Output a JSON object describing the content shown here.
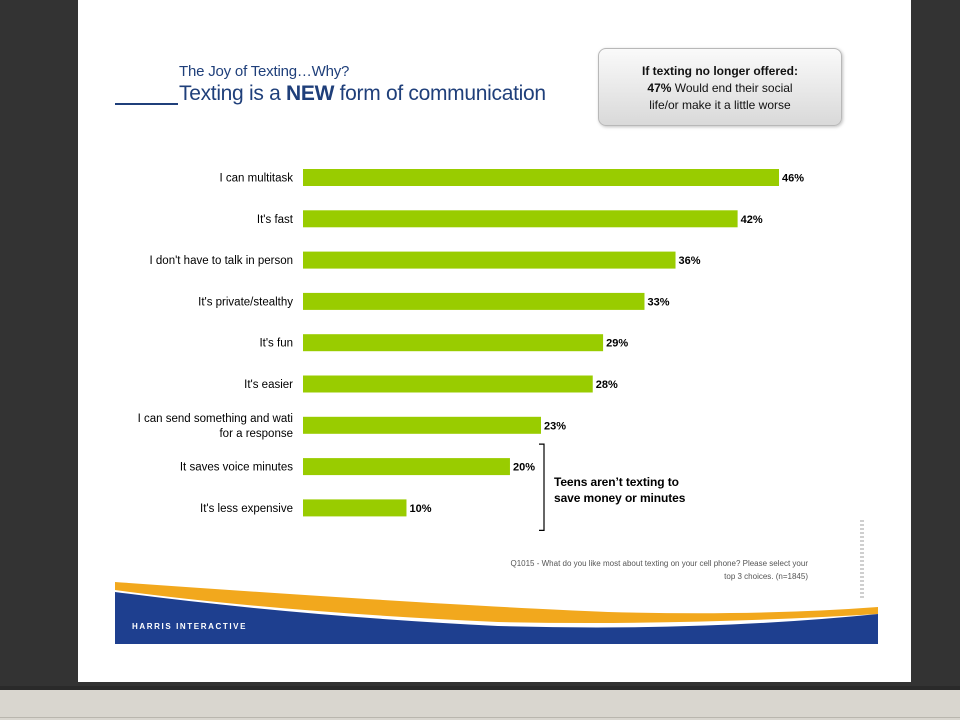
{
  "slide": {
    "subtitle": "The Joy of Texting…Why?",
    "title_pre": "Texting is a ",
    "title_bold": "NEW",
    "title_post": " form of communication"
  },
  "callout": {
    "heading": "If texting no longer offered:",
    "percent": "47%",
    "text_line1": " Would end their social",
    "text_line2": "life/or make it a little worse"
  },
  "annotation": {
    "line1": "Teens aren’t texting to",
    "line2": "save money or minutes"
  },
  "footnote": {
    "line1": "Q1015 - What do you like most about texting on your cell phone?  Please select your",
    "line2": "top 3 choices. (n=1845)"
  },
  "brand": "HARRIS INTERACTIVE",
  "colors": {
    "bar": "#99cc00",
    "title": "#1f3f7a",
    "footer_navy": "#1e3f8f",
    "footer_orange": "#f2a81d"
  },
  "chart_data": {
    "type": "bar",
    "orientation": "horizontal",
    "categories": [
      [
        "I can multitask"
      ],
      [
        "It's fast"
      ],
      [
        "I don't have to talk in person"
      ],
      [
        "It's private/stealthy"
      ],
      [
        "It's fun"
      ],
      [
        "It's easier"
      ],
      [
        "I can send something and wati",
        "for a response"
      ],
      [
        "It saves voice minutes"
      ],
      [
        "It's less expensive"
      ]
    ],
    "values": [
      46,
      42,
      36,
      33,
      29,
      28,
      23,
      20,
      10
    ],
    "value_labels": [
      "46%",
      "42%",
      "36%",
      "33%",
      "29%",
      "28%",
      "23%",
      "20%",
      "10%"
    ],
    "unit": "%",
    "xlim": [
      0,
      50
    ],
    "grid": false
  }
}
